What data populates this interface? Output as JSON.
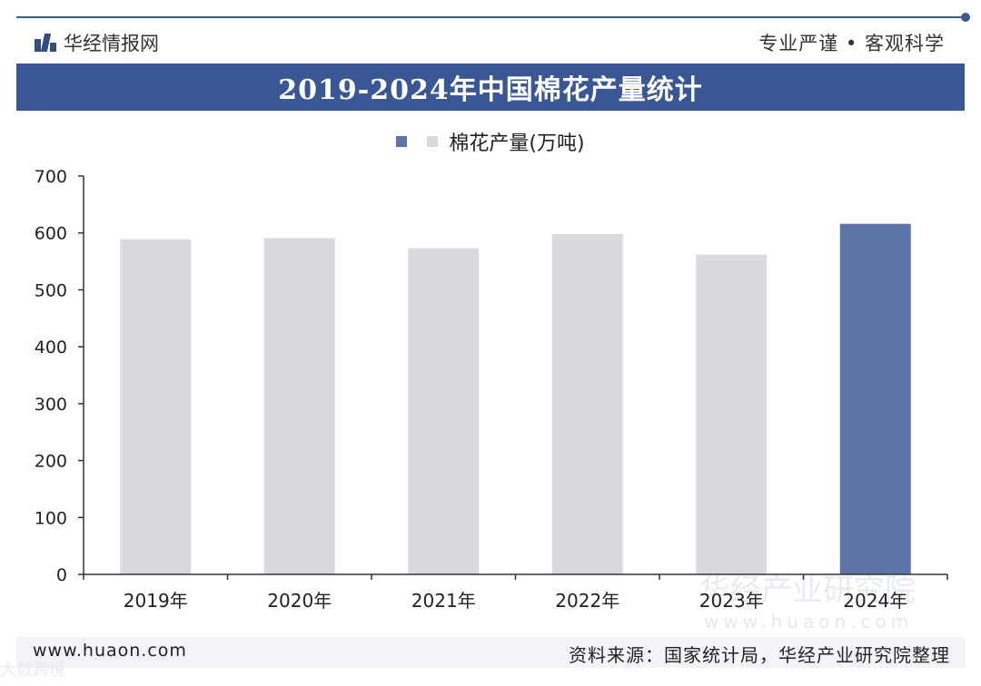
{
  "header": {
    "brand": "华经情报网",
    "motto": "专业严谨 • 客观科学"
  },
  "title": "2019-2024年中国棉花产量统计",
  "legend": {
    "label": "棉花产量(万吨)"
  },
  "footer": {
    "url": "www.huaon.com",
    "source": "资料来源：国家统计局，华经产业研究院整理"
  },
  "watermark": {
    "text": "华经产业研究院",
    "url": "www.huaon.com",
    "corner": "大数跨境"
  },
  "colors": {
    "title_bar": "#3a5795",
    "bar_normal": "#d9dadd",
    "bar_highlight": "#5c74a8",
    "axis": "#333333"
  },
  "chart_data": {
    "type": "bar",
    "categories": [
      "2019年",
      "2020年",
      "2021年",
      "2022年",
      "2023年",
      "2024年"
    ],
    "values": [
      589,
      591,
      573,
      598,
      562,
      616
    ],
    "highlight_index": 5,
    "ylim": [
      0,
      700
    ],
    "yticks": [
      0,
      100,
      200,
      300,
      400,
      500,
      600,
      700
    ],
    "grid": false
  }
}
